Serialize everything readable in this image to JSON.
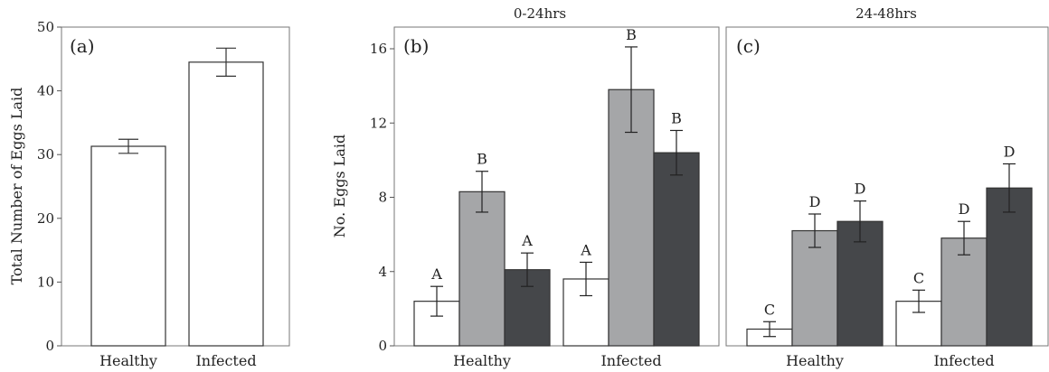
{
  "chart_data": [
    {
      "panel": "(a)",
      "type": "bar",
      "categories": [
        "Healthy",
        "Infected"
      ],
      "values": [
        31.3,
        44.5
      ],
      "errors": [
        1.1,
        2.2
      ],
      "ylabel": "Total Number of Eggs Laid",
      "ylim": [
        0,
        50
      ],
      "yticks": [
        0,
        10,
        20,
        30,
        40,
        50
      ],
      "colors": [
        "#ffffff"
      ]
    },
    {
      "panel": "(b)",
      "facet_title": "0-24hrs",
      "type": "bar",
      "categories": [
        "Healthy",
        "Infected"
      ],
      "ylabel": "No. Eggs Laid",
      "ylim": [
        0,
        17
      ],
      "yticks": [
        0,
        4,
        8,
        12,
        16
      ],
      "colors": [
        "#ffffff",
        "#a5a6a8",
        "#45474a"
      ],
      "series": [
        {
          "values": [
            2.4,
            3.6
          ],
          "errors": [
            0.8,
            0.9
          ],
          "letters": [
            "A",
            "A"
          ]
        },
        {
          "values": [
            8.3,
            13.8
          ],
          "errors": [
            1.1,
            2.3
          ],
          "letters": [
            "B",
            "B"
          ]
        },
        {
          "values": [
            4.1,
            10.4
          ],
          "errors": [
            0.9,
            1.2
          ],
          "letters": [
            "A",
            "B"
          ]
        }
      ]
    },
    {
      "panel": "(c)",
      "facet_title": "24-48hrs",
      "type": "bar",
      "categories": [
        "Healthy",
        "Infected"
      ],
      "ylim": [
        0,
        17
      ],
      "yticks": [
        0,
        4,
        8,
        12,
        16
      ],
      "colors": [
        "#ffffff",
        "#a5a6a8",
        "#45474a"
      ],
      "series": [
        {
          "values": [
            0.9,
            2.4
          ],
          "errors": [
            0.4,
            0.6
          ],
          "letters": [
            "C",
            "C"
          ]
        },
        {
          "values": [
            6.2,
            5.8
          ],
          "errors": [
            0.9,
            0.9
          ],
          "letters": [
            "D",
            "D"
          ]
        },
        {
          "values": [
            6.7,
            8.5
          ],
          "errors": [
            1.1,
            1.3
          ],
          "letters": [
            "D",
            "D"
          ]
        }
      ]
    }
  ]
}
